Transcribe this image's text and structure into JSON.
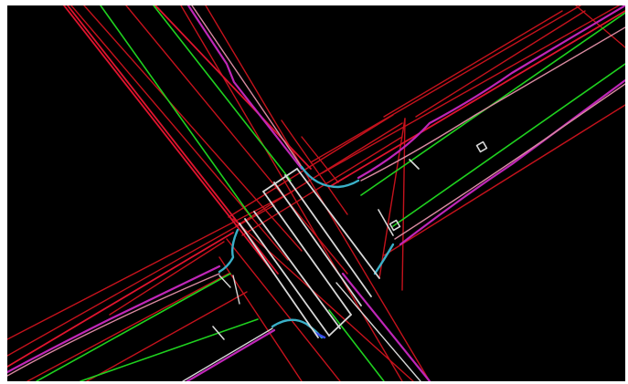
{
  "drawing": {
    "background": "#000000",
    "palette": {
      "centerline_green": "#1fd11f",
      "boundary_red": "#c4121c",
      "edge_crimson": "#e0142e",
      "curb_magenta": "#c026b8",
      "curb_white": "#d8d8d8",
      "curb_pink": "#d98aa0",
      "arc_cyan": "#3ab0c8",
      "edge_blue": "#3a4df0",
      "symbol_white": "#ffffff"
    }
  }
}
